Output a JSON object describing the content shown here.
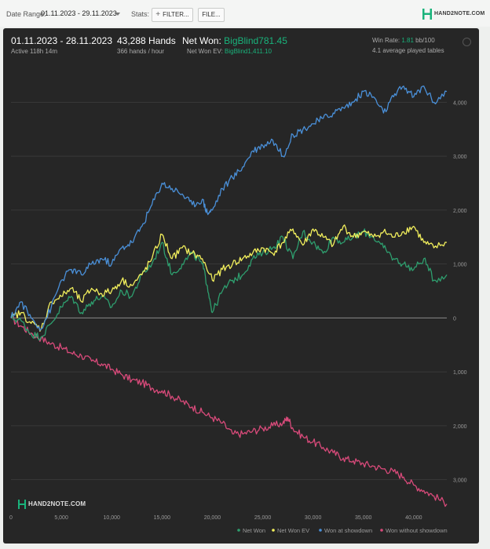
{
  "toolbar": {
    "date_range_label": "Date Range:",
    "date_range_value": "01.11.2023 - 29.11.2023",
    "stats_label": "Stats:",
    "filter_label": "FILTER...",
    "file_label": "FILE...",
    "brand": "HAND2NOTE.COM",
    "brand_color": "#19b37b"
  },
  "summary": {
    "dates": "01.11.2023 - 28.11.2023",
    "active": "Active 118h 14m",
    "hands": "43,288 Hands",
    "hands_rate": "366 hands / hour",
    "net_won_label": "Net Won:",
    "net_won_value": "BigBlind781.45",
    "net_won_ev_label": "Net Won  EV:",
    "net_won_ev_value": "BigBlind1,411.10",
    "win_rate_label": "Win Rate:",
    "win_rate_value": "1.81",
    "win_rate_unit": "bb/100",
    "tables": "4.1 average played tables"
  },
  "watermark": "HAND2NOTE.COM",
  "chart_data": {
    "type": "line",
    "xlim": [
      0,
      43288
    ],
    "ylim": [
      -3500,
      4500
    ],
    "x_ticks": [
      0,
      5000,
      10000,
      15000,
      20000,
      25000,
      30000,
      35000,
      40000
    ],
    "x_tick_labels": [
      "0",
      "5,000",
      "10,000",
      "15,000",
      "20,000",
      "25,000",
      "30,000",
      "35,000",
      "40,000"
    ],
    "y_ticks": [
      4000,
      3000,
      2000,
      1000,
      0,
      -1000,
      -2000,
      -3000
    ],
    "y_tick_labels": [
      "4,000",
      "3,000",
      "2,000",
      "1,000",
      "0",
      "1,000",
      "2,000",
      "3,000"
    ],
    "grid": true,
    "legend_position": "bottom-right",
    "series": [
      {
        "name": "Won without showdown",
        "color": "#d84a7a",
        "x": [
          0,
          1000,
          2000,
          3000,
          4000,
          5000,
          6000,
          7000,
          8000,
          9000,
          10000,
          11000,
          12000,
          13000,
          14000,
          15000,
          16000,
          17000,
          18000,
          19000,
          20000,
          21000,
          22000,
          23000,
          24000,
          25000,
          26000,
          27000,
          27500,
          28000,
          29000,
          30000,
          31000,
          32000,
          33000,
          34000,
          35000,
          36000,
          37000,
          38000,
          39000,
          40000,
          41000,
          42000,
          43288
        ],
        "y": [
          0,
          -150,
          -280,
          -380,
          -480,
          -550,
          -650,
          -700,
          -800,
          -850,
          -950,
          -1050,
          -1150,
          -1200,
          -1300,
          -1350,
          -1450,
          -1550,
          -1650,
          -1750,
          -1850,
          -1950,
          -2150,
          -2150,
          -2100,
          -2050,
          -2000,
          -1950,
          -1850,
          -2050,
          -2200,
          -2300,
          -2400,
          -2500,
          -2600,
          -2650,
          -2700,
          -2750,
          -2800,
          -2850,
          -2950,
          -3100,
          -3200,
          -3300,
          -3450
        ]
      },
      {
        "name": "Net Won",
        "color": "#2e9e6e",
        "x": [
          0,
          1000,
          2000,
          3000,
          4000,
          5000,
          6000,
          7000,
          8000,
          9000,
          10000,
          11000,
          12000,
          13000,
          14000,
          15000,
          16000,
          17000,
          18000,
          19000,
          19500,
          20000,
          21000,
          22000,
          23000,
          24000,
          25000,
          26000,
          27000,
          28000,
          29000,
          30000,
          31000,
          32000,
          33000,
          34000,
          35000,
          36000,
          37000,
          38000,
          39000,
          40000,
          41000,
          42000,
          43288
        ],
        "y": [
          0,
          -50,
          -300,
          -350,
          -100,
          200,
          400,
          100,
          300,
          400,
          200,
          500,
          400,
          800,
          1000,
          1400,
          800,
          1000,
          1200,
          1000,
          600,
          100,
          500,
          700,
          800,
          1100,
          1200,
          1300,
          1500,
          1100,
          1600,
          1400,
          1200,
          1500,
          1400,
          1500,
          1600,
          1500,
          1300,
          1100,
          1000,
          900,
          1100,
          700,
          800
        ]
      },
      {
        "name": "Net Won  EV",
        "color": "#f2ef5c",
        "x": [
          0,
          1000,
          2000,
          3000,
          4000,
          5000,
          6000,
          7000,
          8000,
          9000,
          10000,
          11000,
          12000,
          13000,
          14000,
          15000,
          16000,
          17000,
          18000,
          19000,
          20000,
          21000,
          22000,
          23000,
          24000,
          25000,
          26000,
          27000,
          28000,
          29000,
          30000,
          31000,
          32000,
          33000,
          34000,
          35000,
          36000,
          37000,
          38000,
          39000,
          40000,
          41000,
          42000,
          43288
        ],
        "y": [
          0,
          100,
          -100,
          -200,
          300,
          400,
          550,
          300,
          550,
          450,
          500,
          700,
          600,
          800,
          1100,
          1550,
          1100,
          1300,
          1200,
          1100,
          700,
          900,
          1000,
          1100,
          1200,
          1300,
          1200,
          1400,
          1650,
          1350,
          1650,
          1500,
          1350,
          1700,
          1500,
          1600,
          1500,
          1600,
          1500,
          1600,
          1700,
          1400,
          1300,
          1400
        ]
      },
      {
        "name": "Won at showdown",
        "color": "#4a90d9",
        "x": [
          0,
          1000,
          2000,
          3000,
          4000,
          5000,
          6000,
          7000,
          8000,
          9000,
          10000,
          11000,
          12000,
          13000,
          14000,
          15000,
          16000,
          17000,
          18000,
          19000,
          19500,
          20000,
          21000,
          22000,
          23000,
          24000,
          25000,
          26000,
          27000,
          28000,
          29000,
          30000,
          31000,
          32000,
          33000,
          34000,
          35000,
          36000,
          37000,
          38000,
          39000,
          40000,
          41000,
          42000,
          43288
        ],
        "y": [
          0,
          300,
          0,
          -200,
          200,
          700,
          900,
          800,
          1000,
          1100,
          1000,
          1300,
          1400,
          1700,
          2100,
          2500,
          2400,
          2300,
          2100,
          2200,
          1950,
          2000,
          2400,
          2600,
          2800,
          3100,
          3200,
          3300,
          3000,
          3400,
          3500,
          3600,
          3700,
          3800,
          3900,
          4000,
          4200,
          4100,
          3800,
          4100,
          4300,
          4100,
          4300,
          4000,
          4200
        ]
      }
    ]
  }
}
